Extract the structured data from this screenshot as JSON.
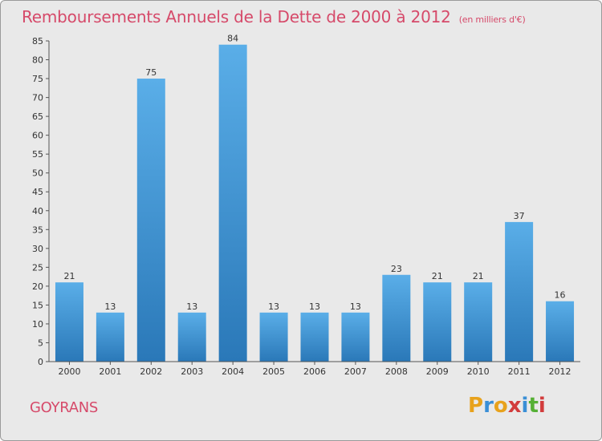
{
  "chart_data": {
    "type": "bar",
    "title": "Remboursements Annuels de la Dette de 2000 à 2012",
    "unit_note": "(en milliers d'€)",
    "categories": [
      "2000",
      "2001",
      "2002",
      "2003",
      "2004",
      "2005",
      "2006",
      "2007",
      "2008",
      "2009",
      "2010",
      "2011",
      "2012"
    ],
    "values": [
      21,
      13,
      75,
      13,
      84,
      13,
      13,
      13,
      23,
      21,
      21,
      37,
      16
    ],
    "data_labels": [
      "21",
      "13",
      "75",
      "13",
      "84",
      "13",
      "13",
      "13",
      "23",
      "21",
      "21",
      "37",
      "16"
    ],
    "ylim": [
      0,
      85
    ],
    "y_ticks": [
      "0",
      "5",
      "10",
      "15",
      "20",
      "25",
      "30",
      "35",
      "40",
      "45",
      "50",
      "55",
      "60",
      "65",
      "70",
      "75",
      "80",
      "85"
    ],
    "xlabel": "",
    "ylabel": "",
    "grid": false,
    "legend": "none",
    "colors": {
      "bar_top": "#5aaee8",
      "bar_bottom": "#2a78b8",
      "title": "#d64a6a",
      "background": "#e9e9e9"
    }
  },
  "footer": {
    "commune": "GOYRANS",
    "logo_letters": [
      "P",
      "r",
      "o",
      "x",
      "i",
      "t",
      "i"
    ],
    "logo_colors": [
      "#e8a21c",
      "#3a8fd6",
      "#e8a21c",
      "#d23c3c",
      "#3a8fd6",
      "#55b035",
      "#d23c3c"
    ]
  }
}
